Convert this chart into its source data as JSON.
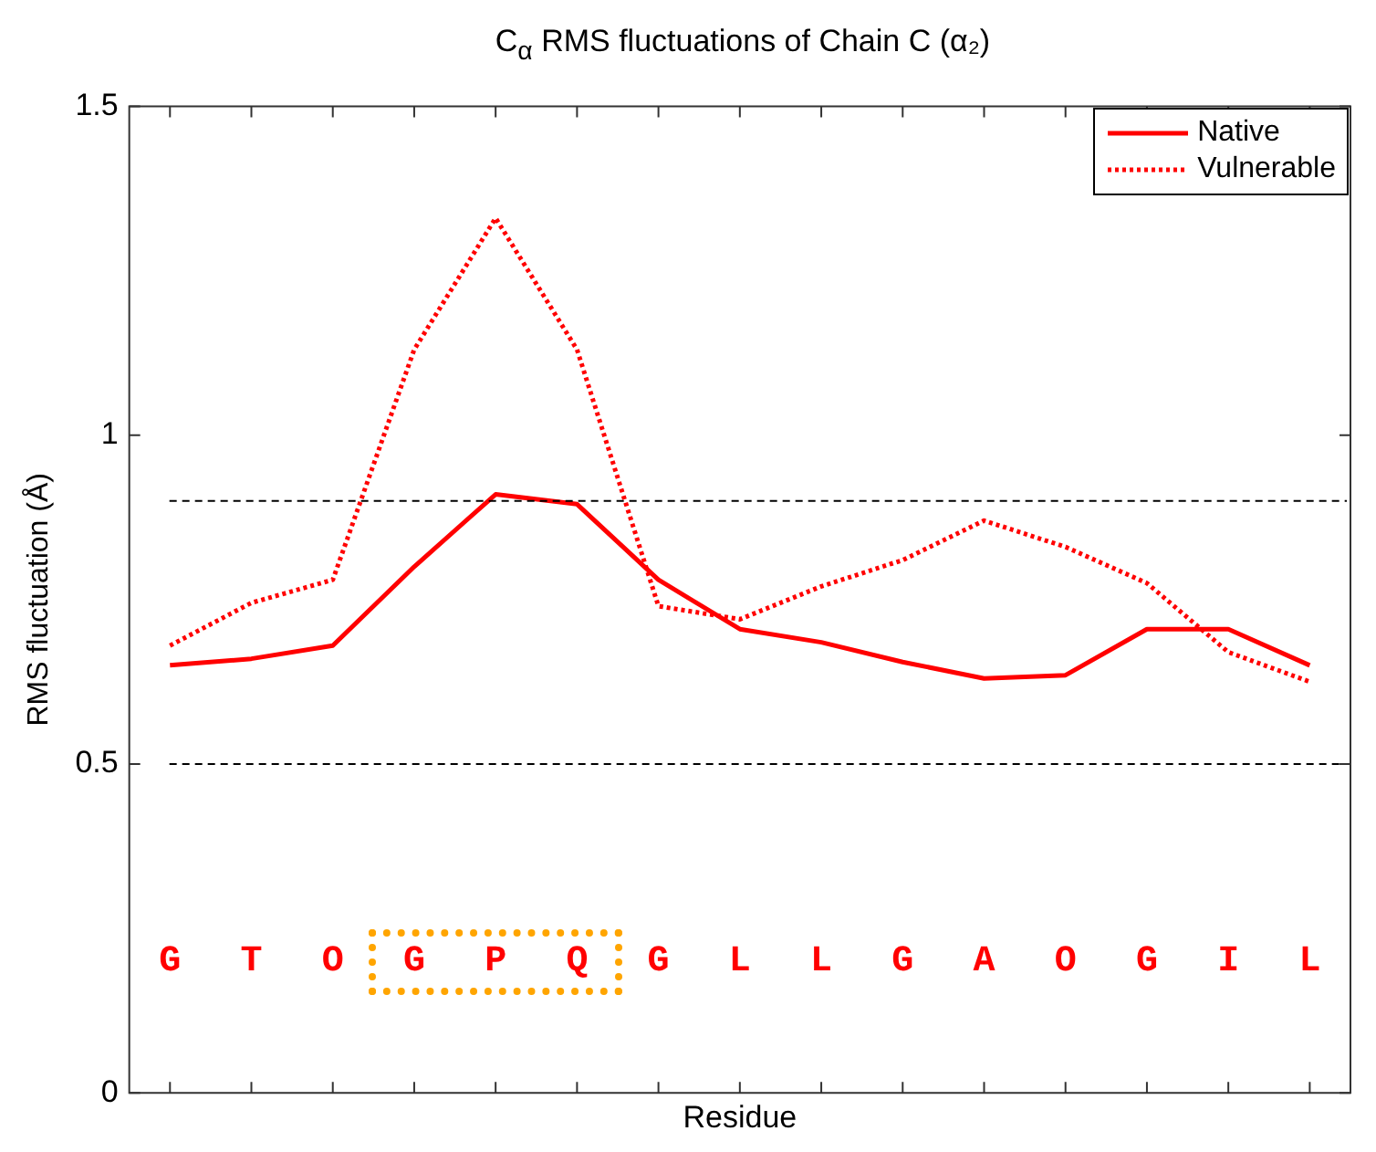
{
  "chart_data": {
    "type": "line",
    "title": "C$_{α}$ RMS fluctuations of Chain C (α₂)",
    "xlabel": "Residue",
    "ylabel": "RMS fluctuation (Å)",
    "categories": [
      "G",
      "T",
      "O",
      "G",
      "P",
      "Q",
      "G",
      "L",
      "L",
      "G",
      "A",
      "O",
      "G",
      "I",
      "L"
    ],
    "series": [
      {
        "name": "Native",
        "color": "#ff0000",
        "line_style": "solid",
        "values": [
          0.65,
          0.66,
          0.68,
          0.8,
          0.91,
          0.895,
          0.78,
          0.705,
          0.685,
          0.655,
          0.63,
          0.635,
          0.705,
          0.705,
          0.65
        ]
      },
      {
        "name": "Vulnerable",
        "color": "#ff0000",
        "line_style": "dotted",
        "values": [
          0.68,
          0.745,
          0.78,
          1.13,
          1.33,
          1.13,
          0.74,
          0.72,
          0.77,
          0.81,
          0.87,
          0.83,
          0.775,
          0.67,
          0.625
        ]
      }
    ],
    "ylim": [
      0,
      1.5
    ],
    "yticks": [
      0,
      0.5,
      1,
      1.5
    ],
    "ref_lines": [
      {
        "axis": "y",
        "value": 0.9,
        "color": "#000000",
        "line_style": "dashed"
      },
      {
        "axis": "y",
        "value": 0.5,
        "color": "#000000",
        "line_style": "dashed"
      }
    ],
    "legend": "top right",
    "grid": false,
    "marker": "none"
  }
}
